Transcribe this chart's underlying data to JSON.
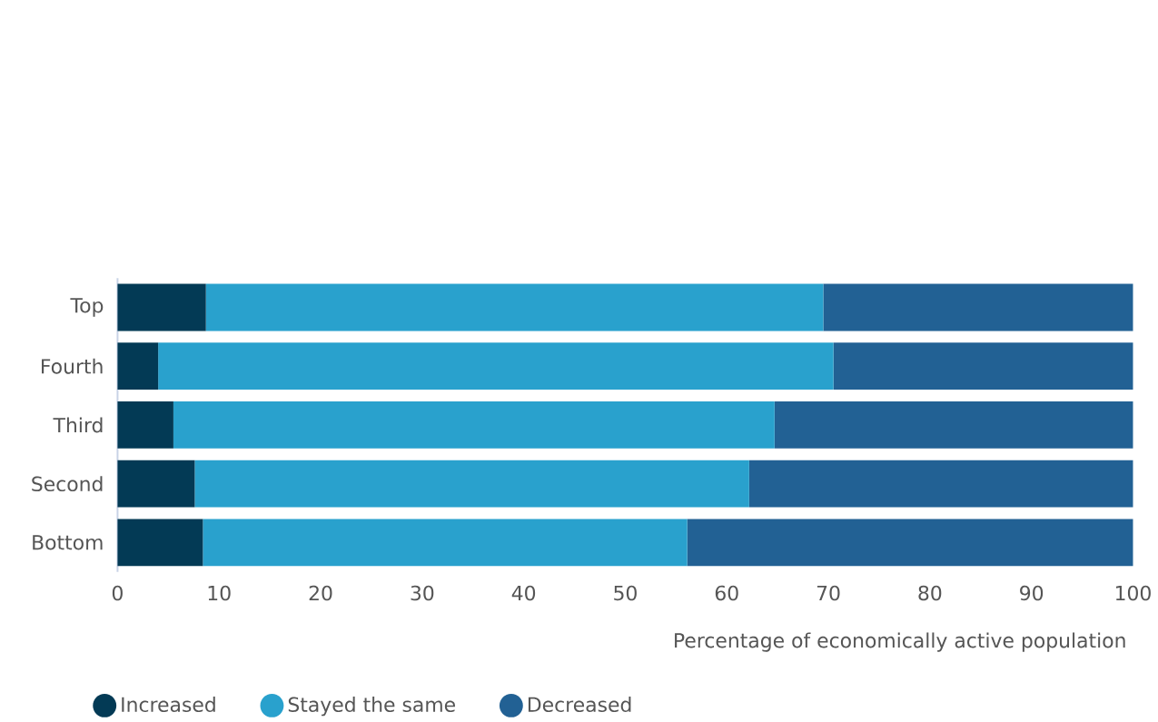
{
  "chart_data": {
    "type": "bar",
    "orientation": "horizontal",
    "stacked": true,
    "categories": [
      "Top",
      "Fourth",
      "Third",
      "Second",
      "Bottom"
    ],
    "series": [
      {
        "name": "Increased",
        "color": "#033a55",
        "values": [
          8.7,
          4.0,
          5.5,
          7.6,
          8.4
        ]
      },
      {
        "name": "Stayed the same",
        "color": "#29a1cd",
        "values": [
          60.8,
          66.5,
          59.2,
          54.6,
          47.7
        ]
      },
      {
        "name": "Decreased",
        "color": "#226194",
        "values": [
          30.5,
          29.5,
          35.3,
          37.8,
          43.9
        ]
      }
    ],
    "xlim": [
      0,
      100
    ],
    "xticks": [
      0,
      10,
      20,
      30,
      40,
      50,
      60,
      70,
      80,
      90,
      100
    ],
    "xlabel": "Percentage of economically active population",
    "legend": "bottom",
    "grid": false
  }
}
